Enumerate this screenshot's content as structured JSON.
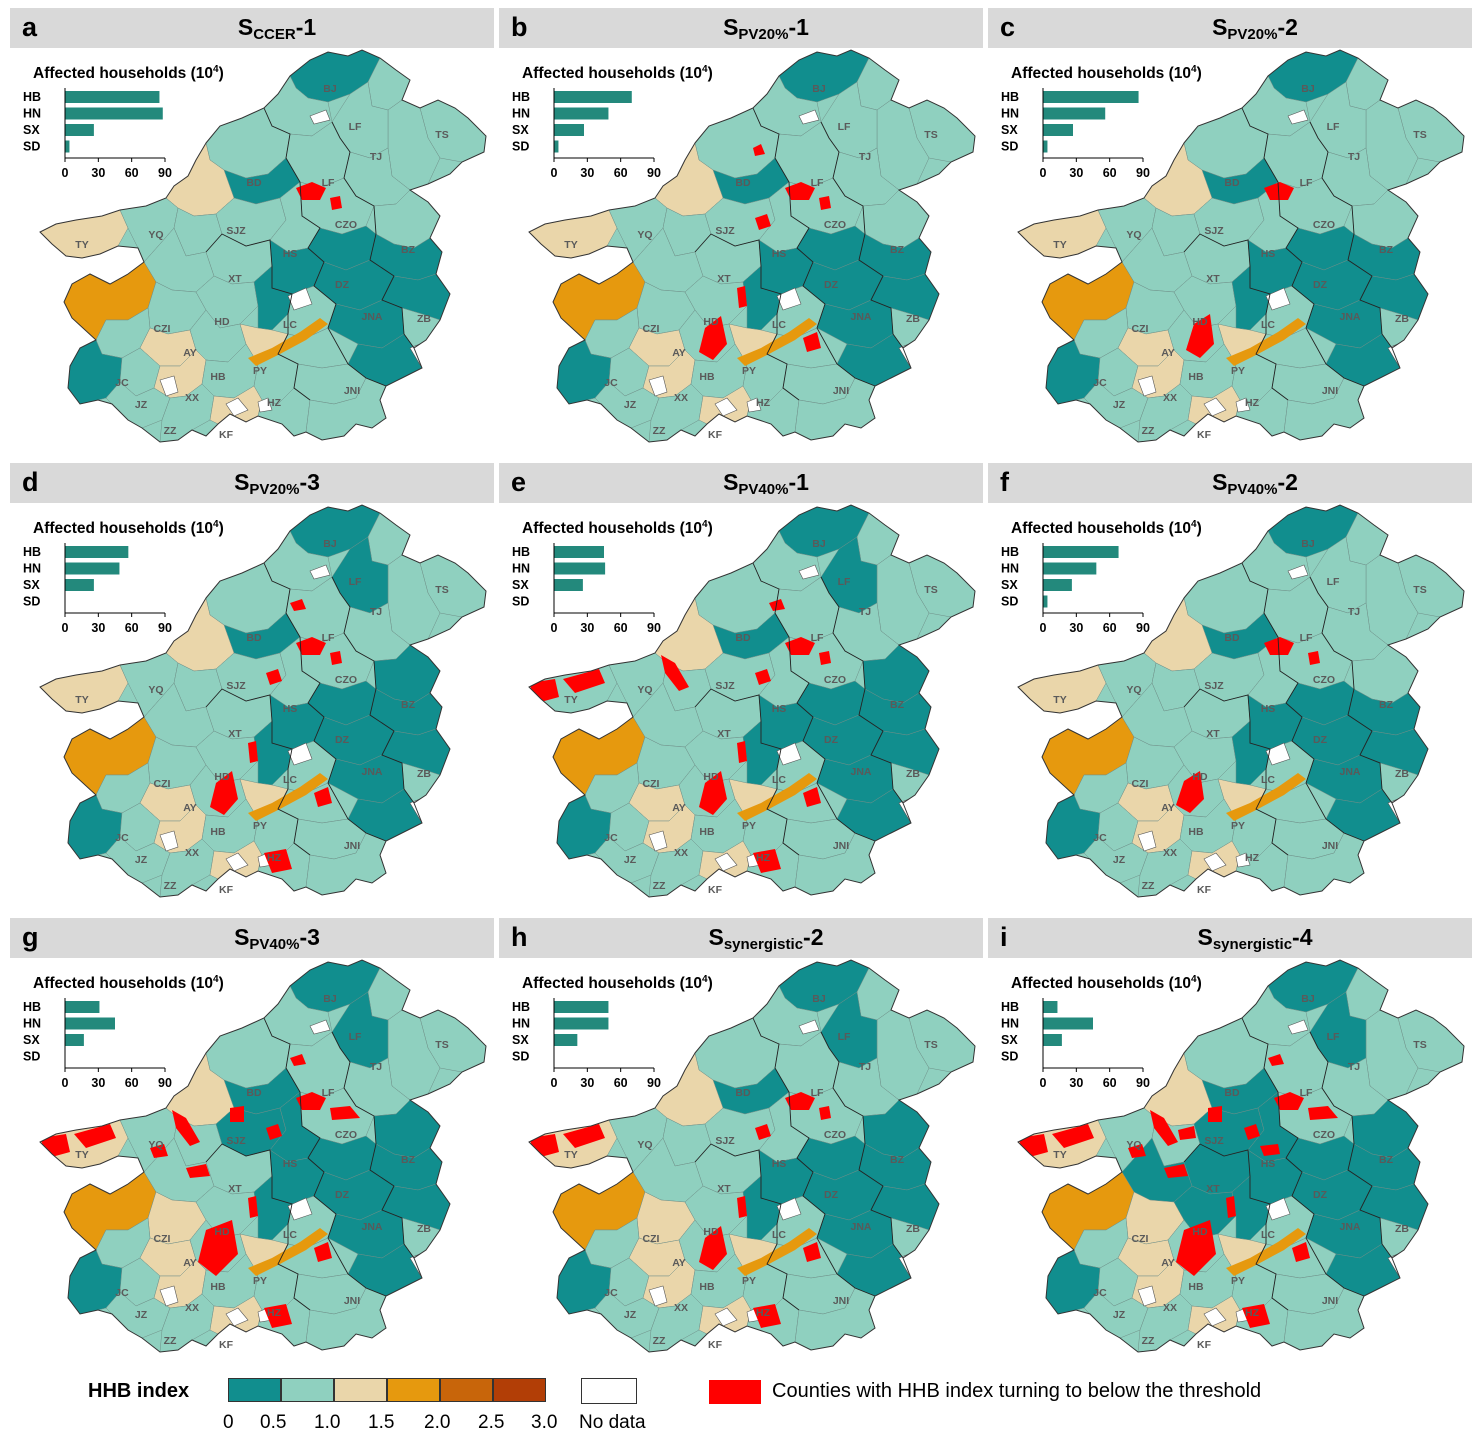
{
  "colors": {
    "c0": "#118e8e",
    "c1": "#8fd0bf",
    "c2": "#ead6aa",
    "c3": "#e6990e",
    "c4": "#c8650a",
    "c5": "#b23e06",
    "red": "#ff0000",
    "bar": "#23897c",
    "header": "#d9d9d9",
    "nodata": "#ffffff"
  },
  "panels": [
    {
      "letter": "a",
      "title_main": "S",
      "title_sub": "CCER",
      "title_suffix": "-1",
      "inset_title": "Affected households (10",
      "inset_sup": "4",
      "inset_close": ")",
      "region_labels": [
        "HB",
        "HN",
        "SX",
        "SD"
      ],
      "bar_values": [
        85,
        88,
        26,
        4
      ],
      "x_ticks": [
        "0",
        "30",
        "60",
        "90"
      ],
      "x_max": 90,
      "map_variant": "a"
    },
    {
      "letter": "b",
      "title_main": "S",
      "title_sub": "PV20%",
      "title_suffix": "-1",
      "inset_title": "Affected households (10",
      "inset_sup": "4",
      "inset_close": ")",
      "region_labels": [
        "HB",
        "HN",
        "SX",
        "SD"
      ],
      "bar_values": [
        70,
        49,
        27,
        4
      ],
      "x_ticks": [
        "0",
        "30",
        "60",
        "90"
      ],
      "x_max": 90,
      "map_variant": "b"
    },
    {
      "letter": "c",
      "title_main": "S",
      "title_sub": "PV20%",
      "title_suffix": "-2",
      "inset_title": "Affected households (10",
      "inset_sup": "4",
      "inset_close": ")",
      "region_labels": [
        "HB",
        "HN",
        "SX",
        "SD"
      ],
      "bar_values": [
        86,
        56,
        27,
        4
      ],
      "x_ticks": [
        "0",
        "30",
        "60",
        "90"
      ],
      "x_max": 90,
      "map_variant": "c"
    },
    {
      "letter": "d",
      "title_main": "S",
      "title_sub": "PV20%",
      "title_suffix": "-3",
      "inset_title": "Affected households (10",
      "inset_sup": "4",
      "inset_close": ")",
      "region_labels": [
        "HB",
        "HN",
        "SX",
        "SD"
      ],
      "bar_values": [
        57,
        49,
        26,
        0
      ],
      "x_ticks": [
        "0",
        "30",
        "60",
        "90"
      ],
      "x_max": 90,
      "map_variant": "d"
    },
    {
      "letter": "e",
      "title_main": "S",
      "title_sub": "PV40%",
      "title_suffix": "-1",
      "inset_title": "Affected households (10",
      "inset_sup": "4",
      "inset_close": ")",
      "region_labels": [
        "HB",
        "HN",
        "SX",
        "SD"
      ],
      "bar_values": [
        45,
        46,
        26,
        0
      ],
      "x_ticks": [
        "0",
        "30",
        "60",
        "90"
      ],
      "x_max": 90,
      "map_variant": "e"
    },
    {
      "letter": "f",
      "title_main": "S",
      "title_sub": "PV40%",
      "title_suffix": "-2",
      "inset_title": "Affected households (10",
      "inset_sup": "4",
      "inset_close": ")",
      "region_labels": [
        "HB",
        "HN",
        "SX",
        "SD"
      ],
      "bar_values": [
        68,
        48,
        26,
        4
      ],
      "x_ticks": [
        "0",
        "30",
        "60",
        "90"
      ],
      "x_max": 90,
      "map_variant": "f"
    },
    {
      "letter": "g",
      "title_main": "S",
      "title_sub": "PV40%",
      "title_suffix": "-3",
      "inset_title": "Affected households (10",
      "inset_sup": "4",
      "inset_close": ")",
      "region_labels": [
        "HB",
        "HN",
        "SX",
        "SD"
      ],
      "bar_values": [
        31,
        45,
        17,
        0
      ],
      "x_ticks": [
        "0",
        "30",
        "60",
        "90"
      ],
      "x_max": 90,
      "map_variant": "g"
    },
    {
      "letter": "h",
      "title_main": "S",
      "title_sub": "synergistic",
      "title_suffix": "-2",
      "inset_title": "Affected households (10",
      "inset_sup": "4",
      "inset_close": ")",
      "region_labels": [
        "HB",
        "HN",
        "SX",
        "SD"
      ],
      "bar_values": [
        49,
        49,
        21,
        0
      ],
      "x_ticks": [
        "0",
        "30",
        "60",
        "90"
      ],
      "x_max": 90,
      "map_variant": "h"
    },
    {
      "letter": "i",
      "title_main": "S",
      "title_sub": "synergistic",
      "title_suffix": "-4",
      "inset_title": "Affected households (10",
      "inset_sup": "4",
      "inset_close": ")",
      "region_labels": [
        "HB",
        "HN",
        "SX",
        "SD"
      ],
      "bar_values": [
        13,
        45,
        17,
        0
      ],
      "x_ticks": [
        "0",
        "30",
        "60",
        "90"
      ],
      "x_max": 90,
      "map_variant": "i"
    }
  ],
  "city_labels": [
    "BJ",
    "LF",
    "TS",
    "TJ",
    "BD",
    "LF",
    "CZO",
    "SJZ",
    "YQ",
    "TY",
    "HS",
    "BZ",
    "XT",
    "DZ",
    "HD",
    "LC",
    "JNA",
    "ZB",
    "CZI",
    "AY",
    "PY",
    "HB",
    "JC",
    "XX",
    "JNI",
    "JZ",
    "HZ",
    "ZZ",
    "KF"
  ],
  "legend": {
    "title": "HHB index",
    "ticks": [
      "0",
      "0.5",
      "1.0",
      "1.5",
      "2.0",
      "2.5",
      "3.0"
    ],
    "nodata_label": "No data",
    "red_label": "Counties with HHB index turning to below the threshold"
  }
}
